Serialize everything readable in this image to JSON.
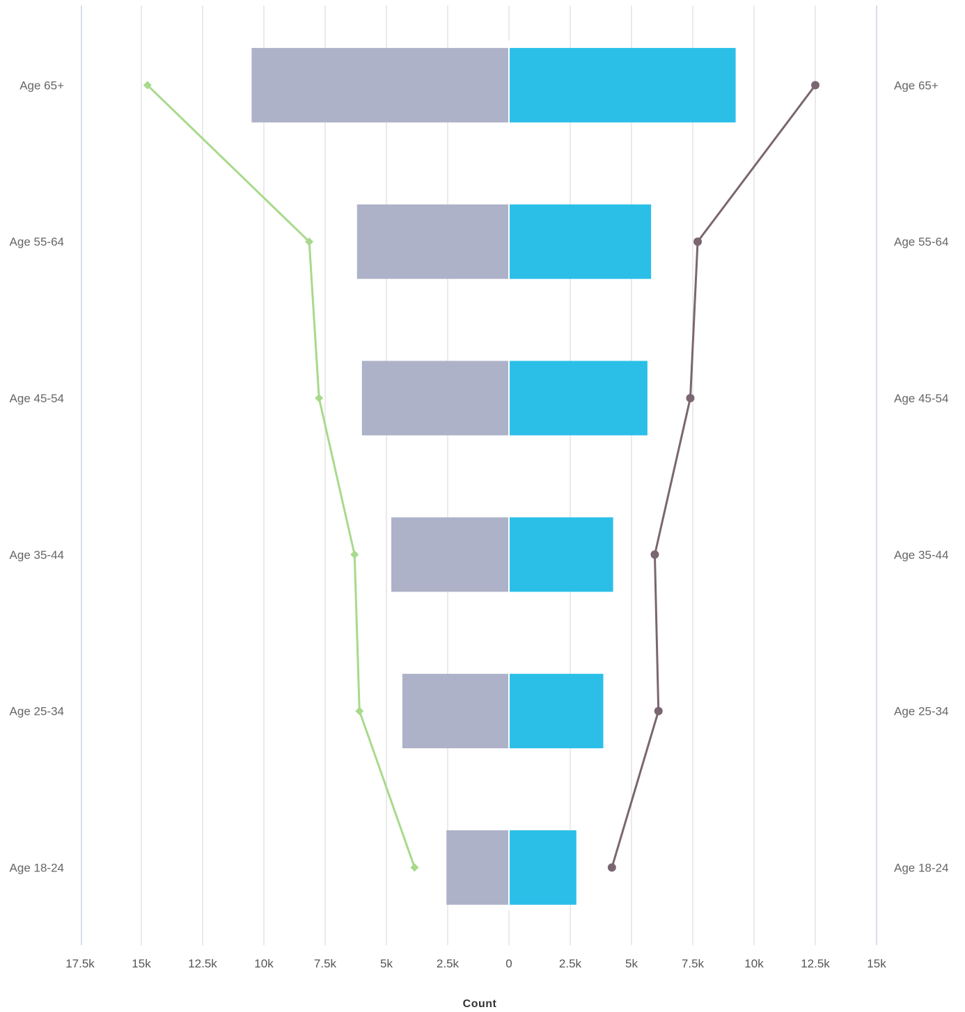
{
  "chart_data": {
    "type": "bar",
    "orientation": "horizontal-diverging",
    "categories": [
      "Age 65+",
      "Age 55-64",
      "Age 45-54",
      "Age 35-44",
      "Age 25-34",
      "Age 18-24"
    ],
    "series": [
      {
        "kind": "bar",
        "side": "left",
        "color": "#adb2c8",
        "values": [
          10500,
          6200,
          6000,
          4800,
          4350,
          2550
        ]
      },
      {
        "kind": "bar",
        "side": "right",
        "color": "#2bbfe8",
        "values": [
          9250,
          5800,
          5650,
          4250,
          3850,
          2750
        ]
      },
      {
        "kind": "line",
        "side": "left",
        "color": "#a8d98c",
        "marker": "diamond",
        "values": [
          14750,
          8150,
          7750,
          6300,
          6100,
          3850
        ]
      },
      {
        "kind": "line",
        "side": "right",
        "color": "#7a6670",
        "marker": "circle",
        "values": [
          12500,
          7700,
          7400,
          5950,
          6100,
          4200
        ]
      }
    ],
    "x_ticks": [
      "17.5k",
      "15k",
      "12.5k",
      "10k",
      "7.5k",
      "5k",
      "2.5k",
      "0",
      "2.5k",
      "5k",
      "7.5k",
      "10k",
      "12.5k",
      "15k"
    ],
    "x_tick_values": [
      -17500,
      -15000,
      -12500,
      -10000,
      -7500,
      -5000,
      -2500,
      0,
      2500,
      5000,
      7500,
      10000,
      12500,
      15000
    ],
    "xlim": [
      -17500,
      15000
    ],
    "xlabel": "Count",
    "grid": true,
    "legend": "none",
    "colors": {
      "grid": "#e3e3e3",
      "frame": "#c8d3e6"
    }
  }
}
